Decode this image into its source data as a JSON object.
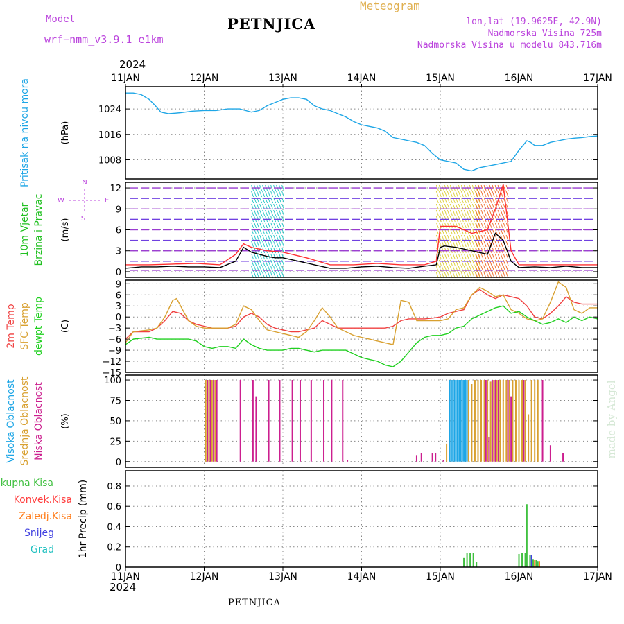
{
  "header": {
    "model_label": "Model",
    "model_name": "wrf−nmm_v3.9.1  e1km",
    "station": "PETNJICA",
    "title": "Meteogram",
    "lonlat": "lon,lat (19.9625E, 42.9N)",
    "altitude": "Nadmorska Visina 725m",
    "model_altitude": "Nadmorska Visina u modelu 843.716m",
    "year_top": "2024",
    "year_bottom": "2024",
    "footer_station": "PETNJICA",
    "credit": "made by Angel"
  },
  "colors": {
    "pressure": "#1ea6e6",
    "wind_label": "#22c022",
    "wind_speed": "#000000",
    "gust": "#ff3030",
    "temp2m": "#f04040",
    "sfc_temp": "#d8a030",
    "dewpoint": "#20d020",
    "cloud_high": "#1ea6e6",
    "cloud_mid": "#d8a030",
    "cloud_low": "#cc1f8f",
    "precip_total": "#40c040",
    "precip_conv": "#ff4040",
    "precip_frozen": "#ff8020",
    "precip_snow": "#4040e0",
    "precip_grad": "#20c0c0",
    "compass": "#bb44dd"
  },
  "chart_data": [
    {
      "type": "line",
      "id": "pressure",
      "ylabel_lines": [
        "Pritisak na nivou mora"
      ],
      "unit": "(hPa)",
      "xticks": [
        "11JAN",
        "12JAN",
        "13JAN",
        "14JAN",
        "15JAN",
        "16JAN",
        "17JAN"
      ],
      "yticks": [
        "1024",
        "1016",
        "1008"
      ],
      "ylim": [
        1002,
        1031
      ],
      "grid": true,
      "series": [
        {
          "key": "pressure",
          "x": [
            0,
            0.1,
            0.2,
            0.3,
            0.38,
            0.45,
            0.55,
            0.7,
            0.85,
            1.0,
            1.15,
            1.3,
            1.45,
            1.6,
            1.7,
            1.8,
            1.9,
            2.0,
            2.1,
            2.2,
            2.3,
            2.4,
            2.5,
            2.6,
            2.7,
            2.8,
            2.9,
            3.0,
            3.1,
            3.2,
            3.3,
            3.4,
            3.5,
            3.6,
            3.7,
            3.8,
            3.9,
            4.0,
            4.1,
            4.2,
            4.3,
            4.4,
            4.45,
            4.5,
            4.6,
            4.7,
            4.8,
            4.9,
            5.0,
            5.1,
            5.15,
            5.2,
            5.3,
            5.4,
            5.5,
            5.6,
            5.7,
            5.8,
            5.9,
            6.0
          ],
          "y": [
            1029,
            1029,
            1028.5,
            1027,
            1025,
            1023,
            1022.5,
            1022.8,
            1023.3,
            1023.5,
            1023.5,
            1024,
            1024,
            1023,
            1023.5,
            1025,
            1026,
            1027,
            1027.5,
            1027.5,
            1027,
            1025,
            1024,
            1023.5,
            1022.5,
            1021.5,
            1020,
            1019,
            1018.5,
            1018,
            1017,
            1015,
            1014.5,
            1014,
            1013.5,
            1012.5,
            1010,
            1008,
            1007.5,
            1007,
            1005,
            1004.5,
            1005,
            1005.5,
            1006,
            1006.5,
            1007,
            1007.5,
            1011,
            1014,
            1013.5,
            1012.5,
            1012.5,
            1013.5,
            1014,
            1014.5,
            1014.8,
            1015,
            1015.3,
            1015.5
          ]
        }
      ]
    },
    {
      "type": "line",
      "id": "wind",
      "ylabel_lines": [
        "10m Vjetar",
        "Brzina i Pravac"
      ],
      "unit": "(m/s)",
      "compass": {
        "n": "N",
        "w": "W",
        "e": "E",
        "s": "S"
      },
      "yticks": [
        "12",
        "9",
        "6",
        "3",
        "0"
      ],
      "ylim": [
        -0.8,
        12.8
      ],
      "grid": true,
      "series": [
        {
          "key": "wind_speed",
          "x": [
            0,
            0.2,
            0.4,
            0.6,
            0.8,
            1.0,
            1.2,
            1.4,
            1.5,
            1.6,
            1.7,
            1.8,
            1.9,
            2.0,
            2.2,
            2.4,
            2.6,
            2.8,
            3.0,
            3.2,
            3.4,
            3.6,
            3.8,
            3.95,
            4.0,
            4.05,
            4.2,
            4.4,
            4.6,
            4.7,
            4.8,
            4.9,
            5.0,
            5.2,
            5.4,
            5.6,
            5.8,
            6.0
          ],
          "y": [
            0.5,
            0.7,
            0.7,
            0.8,
            0.7,
            0.7,
            0.6,
            1.5,
            3.5,
            2.8,
            2.5,
            2.2,
            2.0,
            2.0,
            1.5,
            1.0,
            0.5,
            0.5,
            0.7,
            0.8,
            0.6,
            0.5,
            0.8,
            1.0,
            3.5,
            3.7,
            3.5,
            3.0,
            2.5,
            5.5,
            4.5,
            1.5,
            0.6,
            0.7,
            0.6,
            0.8,
            0.6,
            0.6
          ]
        },
        {
          "key": "gust",
          "x": [
            0,
            0.3,
            0.6,
            0.9,
            1.2,
            1.4,
            1.5,
            1.6,
            1.8,
            2.0,
            2.3,
            2.6,
            2.9,
            3.2,
            3.5,
            3.8,
            3.95,
            4.0,
            4.2,
            4.4,
            4.6,
            4.7,
            4.8,
            4.9,
            5.0,
            5.2,
            5.5,
            5.8,
            6.0
          ],
          "y": [
            1,
            1,
            1.1,
            1.2,
            1.0,
            2.5,
            4.0,
            3.5,
            3.0,
            2.8,
            2.0,
            1.0,
            1.0,
            1.2,
            1.0,
            1.0,
            1.5,
            6.5,
            6.5,
            5.5,
            6.0,
            9.0,
            12.5,
            3.0,
            1.0,
            1.0,
            1.0,
            1.0,
            1.0
          ]
        }
      ],
      "barb_bands": [
        {
          "x0": 1.6,
          "x1": 2.0
        },
        {
          "x0": 3.95,
          "x1": 4.5
        },
        {
          "x0": 4.45,
          "x1": 4.85
        }
      ]
    },
    {
      "type": "line",
      "id": "temperature",
      "ylabel_lines": [
        "2m Temp",
        "SFC Temp",
        "dewpt Temp"
      ],
      "unit": "(C)",
      "yticks": [
        "9",
        "6",
        "3",
        "0",
        "−3",
        "−6",
        "−9",
        "−12",
        "−15"
      ],
      "ylim": [
        -15,
        10
      ],
      "grid": true,
      "series": [
        {
          "key": "temp2m",
          "x": [
            0,
            0.1,
            0.3,
            0.4,
            0.5,
            0.6,
            0.7,
            0.8,
            0.9,
            1.0,
            1.1,
            1.2,
            1.3,
            1.4,
            1.5,
            1.6,
            1.7,
            1.8,
            1.9,
            2.0,
            2.1,
            2.2,
            2.3,
            2.4,
            2.5,
            2.6,
            2.7,
            2.8,
            2.9,
            3.0,
            3.1,
            3.2,
            3.3,
            3.4,
            3.5,
            3.6,
            3.7,
            3.8,
            3.9,
            4.0,
            4.1,
            4.2,
            4.3,
            4.4,
            4.5,
            4.6,
            4.7,
            4.8,
            4.9,
            5.0,
            5.1,
            5.2,
            5.3,
            5.4,
            5.5,
            5.6,
            5.7,
            5.8,
            5.9,
            6.0
          ],
          "y": [
            -6,
            -4,
            -4,
            -3,
            -1,
            1.5,
            1,
            -1,
            -2,
            -2.5,
            -3,
            -3,
            -3,
            -2.5,
            0,
            1,
            0,
            -2,
            -3,
            -3.5,
            -4,
            -4,
            -3.5,
            -3,
            -1,
            -2,
            -3,
            -3,
            -3,
            -3,
            -3,
            -3,
            -3,
            -2.5,
            -1,
            -0.5,
            -0.5,
            -0.5,
            -0.3,
            0,
            1,
            1.5,
            2,
            6,
            7.5,
            6,
            5,
            6,
            5.5,
            5,
            3,
            0,
            -0.5,
            1,
            3,
            5.5,
            4,
            3.5,
            3.5,
            3.5
          ]
        },
        {
          "key": "sfc_temp",
          "x": [
            0,
            0.1,
            0.3,
            0.4,
            0.5,
            0.6,
            0.65,
            0.8,
            0.9,
            1.0,
            1.1,
            1.2,
            1.3,
            1.4,
            1.5,
            1.6,
            1.7,
            1.8,
            1.9,
            2.0,
            2.1,
            2.2,
            2.3,
            2.4,
            2.5,
            2.6,
            2.7,
            2.8,
            2.9,
            3.0,
            3.1,
            3.2,
            3.3,
            3.4,
            3.5,
            3.6,
            3.7,
            3.8,
            3.9,
            4.0,
            4.1,
            4.2,
            4.3,
            4.4,
            4.5,
            4.6,
            4.7,
            4.8,
            4.9,
            5.0,
            5.1,
            5.2,
            5.3,
            5.4,
            5.5,
            5.6,
            5.7,
            5.8,
            5.9,
            6.0
          ],
          "y": [
            -7,
            -4,
            -3.5,
            -3,
            0,
            4.5,
            5,
            -1,
            -2.5,
            -3,
            -3,
            -3,
            -3,
            -2,
            3,
            2,
            -1,
            -3.5,
            -4,
            -4.5,
            -5,
            -5.5,
            -4,
            -1,
            2.5,
            0,
            -3,
            -4,
            -5,
            -5.5,
            -6,
            -6.5,
            -7,
            -7.5,
            4.5,
            4,
            -1,
            -1,
            -1,
            -1,
            -0.5,
            2,
            2.5,
            6,
            8,
            7,
            5.5,
            6,
            2,
            1,
            -0.5,
            -1,
            -0.5,
            4,
            9.5,
            8,
            2,
            1,
            2.5,
            2.5
          ]
        },
        {
          "key": "dewpoint",
          "x": [
            0,
            0.1,
            0.3,
            0.4,
            0.5,
            0.6,
            0.7,
            0.8,
            0.9,
            1.0,
            1.1,
            1.2,
            1.3,
            1.4,
            1.5,
            1.6,
            1.7,
            1.8,
            1.9,
            2.0,
            2.1,
            2.2,
            2.3,
            2.4,
            2.5,
            2.6,
            2.7,
            2.8,
            2.9,
            3.0,
            3.1,
            3.2,
            3.3,
            3.4,
            3.5,
            3.6,
            3.7,
            3.8,
            3.9,
            4.0,
            4.1,
            4.2,
            4.3,
            4.4,
            4.5,
            4.6,
            4.7,
            4.8,
            4.9,
            5.0,
            5.1,
            5.2,
            5.3,
            5.4,
            5.5,
            5.6,
            5.7,
            5.8,
            5.9,
            6.0
          ],
          "y": [
            -7.5,
            -6,
            -5.5,
            -6,
            -6,
            -6,
            -6,
            -6,
            -6.5,
            -8,
            -8.5,
            -8,
            -8,
            -8.5,
            -6,
            -7.5,
            -8.5,
            -9,
            -9,
            -9,
            -8.5,
            -8.5,
            -9,
            -9.5,
            -9,
            -9,
            -9,
            -9,
            -10,
            -11,
            -11.5,
            -12,
            -13,
            -13.5,
            -12,
            -9.5,
            -7,
            -5.5,
            -5,
            -5,
            -4.5,
            -3,
            -2.5,
            -0.5,
            0.5,
            1.5,
            2.5,
            3,
            1,
            1.5,
            0,
            -1,
            -2,
            -1.5,
            -0.5,
            -1.5,
            0,
            -1,
            0,
            -0.5
          ]
        }
      ]
    },
    {
      "type": "bar",
      "id": "clouds",
      "ylabel_lines": [
        "Visoka Oblacnost",
        "Srednja Oblacnost",
        "Niska Oblacnost"
      ],
      "unit": "(%)",
      "yticks": [
        "100",
        "75",
        "50",
        "25",
        "0"
      ],
      "ylim": [
        -7,
        106
      ],
      "grid": true,
      "series": [
        {
          "key": "cloud_high",
          "x": [
            4.12,
            4.14,
            4.16,
            4.18,
            4.2,
            4.22,
            4.24,
            4.26,
            4.28,
            4.3,
            4.32,
            4.34
          ],
          "y": [
            100,
            100,
            100,
            100,
            100,
            100,
            100,
            100,
            100,
            100,
            100,
            100
          ]
        },
        {
          "key": "cloud_mid",
          "x": [
            1.02,
            1.06,
            1.1,
            1.14,
            4.08,
            4.36,
            4.4,
            4.44,
            4.48,
            4.52,
            4.56,
            4.6,
            4.64,
            4.68,
            4.72,
            4.76,
            4.8,
            4.84,
            4.88,
            4.92,
            4.96,
            5.0,
            5.04,
            5.08,
            5.12,
            5.16,
            5.2,
            5.24
          ],
          "y": [
            100,
            100,
            100,
            100,
            22,
            100,
            95,
            100,
            100,
            100,
            100,
            100,
            98,
            100,
            100,
            100,
            100,
            100,
            100,
            100,
            100,
            100,
            100,
            100,
            58,
            100,
            100,
            100
          ]
        },
        {
          "key": "cloud_low",
          "x": [
            1.04,
            1.08,
            1.12,
            1.16,
            1.46,
            1.62,
            1.66,
            1.82,
            1.96,
            2.12,
            2.22,
            2.36,
            2.52,
            2.62,
            2.76,
            2.82,
            3.7,
            3.76,
            3.9,
            3.94,
            4.04,
            4.58,
            4.62,
            4.66,
            4.7,
            4.74,
            4.86,
            4.9,
            5.06,
            5.3,
            5.4,
            5.56
          ],
          "y": [
            100,
            100,
            100,
            100,
            100,
            100,
            80,
            100,
            100,
            100,
            100,
            100,
            100,
            100,
            100,
            2,
            8,
            10,
            10,
            10,
            2,
            100,
            30,
            100,
            100,
            100,
            100,
            80,
            100,
            100,
            20,
            10
          ]
        }
      ]
    },
    {
      "type": "bar",
      "id": "precip",
      "ylabel_lines": [
        "1hr Precip (mm)"
      ],
      "legend": [
        "Ukupna Kisa",
        "Konvek.Kisa",
        "Zaledj.Kisa",
        "Snijeg",
        "Grad"
      ],
      "yticks": [
        "0.8",
        "0.6",
        "0.4",
        "0.2",
        "0"
      ],
      "xticks_bottom": [
        "11JAN",
        "12JAN",
        "13JAN",
        "14JAN",
        "15JAN",
        "16JAN",
        "17JAN"
      ],
      "ylim": [
        0,
        0.95
      ],
      "grid": true,
      "series": [
        {
          "key": "precip_total",
          "x": [
            4.3,
            4.34,
            4.38,
            4.42,
            4.46,
            5.0,
            5.04,
            5.08,
            5.1,
            5.14,
            5.18,
            5.22,
            5.24
          ],
          "y": [
            0.09,
            0.14,
            0.14,
            0.14,
            0.05,
            0.13,
            0.14,
            0.14,
            0.62,
            0.12,
            0.08,
            0.07,
            0.06
          ]
        },
        {
          "key": "precip_snow",
          "x": [
            5.16
          ],
          "y": [
            0.12
          ]
        },
        {
          "key": "precip_frozen",
          "x": [
            5.2,
            5.26
          ],
          "y": [
            0.07,
            0.06
          ]
        }
      ]
    }
  ]
}
